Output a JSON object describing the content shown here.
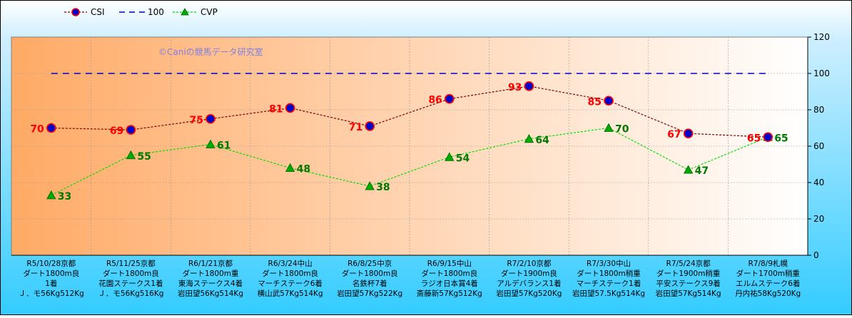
{
  "chart_data": {
    "type": "line",
    "categories": [
      [
        "R5/10/28京都",
        "ダート1800m良",
        "1着",
        "Ｊ．モ56Kg512Kg"
      ],
      [
        "R5/11/25京都",
        "ダート1800m良",
        "花園ステークス1着",
        "Ｊ．モ56Kg516Kg"
      ],
      [
        "R6/1/21京都",
        "ダート1800m重",
        "東海ステークス4着",
        "岩田望56Kg514Kg"
      ],
      [
        "R6/3/24中山",
        "ダート1800m良",
        "マーチステーク6着",
        "横山武57Kg514Kg"
      ],
      [
        "R6/8/25中京",
        "ダート1800m良",
        "名鉄杯7着",
        "岩田望57Kg522Kg"
      ],
      [
        "R6/9/15中山",
        "ダート1800m良",
        "ラジオ日本賞4着",
        "斎藤新57Kg512Kg"
      ],
      [
        "R7/2/10京都",
        "ダート1900m良",
        "アルデバランス1着",
        "岩田望57Kg520Kg"
      ],
      [
        "R7/3/30中山",
        "ダート1800m稍重",
        "マーチステーク1着",
        "岩田望57.5Kg514Kg"
      ],
      [
        "R7/5/24京都",
        "ダート1900m稍重",
        "平安ステークス9着",
        "岩田望57Kg514Kg"
      ],
      [
        "R7/8/9札幌",
        "ダート1700m稍重",
        "エルムステーク6着",
        "丹内祐58Kg520Kg"
      ]
    ],
    "series": [
      {
        "name": "CSI",
        "values": [
          70,
          69,
          75,
          81,
          71,
          86,
          93,
          85,
          67,
          65
        ],
        "color": "#800000",
        "marker_color": "#ff0000",
        "marker_fill": "#0000cc",
        "style": "dotted",
        "marker": "circle"
      },
      {
        "name": "100",
        "values": [
          100,
          100,
          100,
          100,
          100,
          100,
          100,
          100,
          100,
          100
        ],
        "color": "#0000cc",
        "style": "dashed",
        "marker": "none"
      },
      {
        "name": "CVP",
        "values": [
          33,
          55,
          61,
          48,
          38,
          54,
          64,
          70,
          47,
          65
        ],
        "color": "#00dd00",
        "marker_fill": "#00aa00",
        "style": "dotted",
        "marker": "triangle"
      }
    ],
    "ylim": [
      0,
      120
    ],
    "yticks": [
      0,
      20,
      40,
      60,
      80,
      100,
      120
    ],
    "y_axis_side": "right",
    "grid": true,
    "legend_position": "top-left",
    "annotation": "©Caniの競馬データ研究室",
    "colors": {
      "outer_background": "#33ccff",
      "plot_gradient_left": "#ffaa66",
      "plot_gradient_right": "#ffffff",
      "grid": "#999999"
    }
  }
}
